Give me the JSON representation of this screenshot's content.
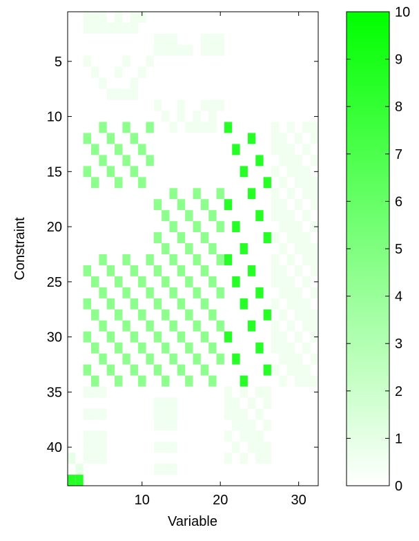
{
  "chart_data": {
    "type": "heatmap",
    "title": "",
    "xlabel": "Variable",
    "ylabel": "Constraint",
    "xlim": [
      0.5,
      32.5
    ],
    "ylim": [
      0.5,
      43.5
    ],
    "y_reversed": true,
    "x_ticks": [
      10,
      20,
      30
    ],
    "y_ticks": [
      5,
      10,
      15,
      20,
      25,
      30,
      35,
      40
    ],
    "colorbar": {
      "min": 0,
      "max": 10,
      "ticks": [
        0,
        1,
        2,
        3,
        4,
        5,
        6,
        7,
        8,
        9,
        10
      ],
      "color_low": "#ffffff",
      "color_high": "#00ff00"
    },
    "cells": [
      [
        1,
        3,
        0.6
      ],
      [
        1,
        4,
        0.6
      ],
      [
        1,
        5,
        0.6
      ],
      [
        2,
        3,
        0.6
      ],
      [
        2,
        4,
        0.6
      ],
      [
        2,
        5,
        0.6
      ],
      [
        1,
        7,
        0.6
      ],
      [
        1,
        9,
        0.6
      ],
      [
        1,
        10,
        0.6
      ],
      [
        2,
        6,
        0.6
      ],
      [
        2,
        7,
        0.6
      ],
      [
        2,
        8,
        0.6
      ],
      [
        2,
        9,
        0.6
      ],
      [
        3,
        12,
        0.6
      ],
      [
        3,
        13,
        0.6
      ],
      [
        3,
        14,
        0.6
      ],
      [
        3,
        18,
        0.6
      ],
      [
        3,
        19,
        0.6
      ],
      [
        3,
        20,
        0.6
      ],
      [
        4,
        12,
        0.6
      ],
      [
        4,
        13,
        0.6
      ],
      [
        4,
        14,
        0.6
      ],
      [
        4,
        15,
        0.6
      ],
      [
        4,
        16,
        0.6
      ],
      [
        4,
        18,
        0.6
      ],
      [
        4,
        19,
        0.6
      ],
      [
        4,
        20,
        0.6
      ],
      [
        5,
        3,
        0.6
      ],
      [
        5,
        8,
        0.6
      ],
      [
        5,
        11,
        0.6
      ],
      [
        6,
        4,
        0.6
      ],
      [
        6,
        7,
        0.6
      ],
      [
        6,
        10,
        0.6
      ],
      [
        7,
        5,
        0.6
      ],
      [
        7,
        9,
        0.6
      ],
      [
        8,
        6,
        0.6
      ],
      [
        8,
        7,
        0.6
      ],
      [
        8,
        8,
        0.6
      ],
      [
        8,
        9,
        0.6
      ],
      [
        9,
        12,
        0.6
      ],
      [
        9,
        15,
        0.6
      ],
      [
        9,
        18,
        0.6
      ],
      [
        9,
        19,
        0.6
      ],
      [
        9,
        20,
        0.6
      ],
      [
        10,
        13,
        0.6
      ],
      [
        10,
        15,
        0.6
      ],
      [
        10,
        17,
        0.6
      ],
      [
        10,
        19,
        0.6
      ],
      [
        11,
        14,
        0.6
      ],
      [
        11,
        16,
        0.6
      ],
      [
        11,
        17,
        0.6
      ],
      [
        11,
        18,
        0.6
      ],
      [
        11,
        19,
        0.6
      ],
      [
        11,
        21,
        8.5
      ],
      [
        12,
        24,
        8.5
      ],
      [
        13,
        22,
        8.5
      ],
      [
        14,
        25,
        8.5
      ],
      [
        15,
        23,
        8.5
      ],
      [
        16,
        26,
        8.5
      ],
      [
        17,
        24,
        8.5
      ],
      [
        18,
        21,
        8.5
      ],
      [
        19,
        25,
        8.5
      ],
      [
        20,
        22,
        8.5
      ],
      [
        21,
        26,
        8.5
      ],
      [
        22,
        23,
        8.5
      ],
      [
        23,
        21,
        8.5
      ],
      [
        24,
        24,
        8.5
      ],
      [
        25,
        22,
        8.5
      ],
      [
        26,
        25,
        8.5
      ],
      [
        27,
        23,
        8.5
      ],
      [
        28,
        26,
        8.5
      ],
      [
        29,
        24,
        8.5
      ],
      [
        30,
        21,
        8.5
      ],
      [
        31,
        25,
        8.5
      ],
      [
        32,
        22,
        8.5
      ],
      [
        33,
        26,
        8.5
      ],
      [
        34,
        23,
        8.5
      ],
      [
        35,
        3,
        0.6
      ],
      [
        35,
        4,
        0.6
      ],
      [
        35,
        5,
        0.6
      ],
      [
        37,
        3,
        0.6
      ],
      [
        37,
        4,
        0.6
      ],
      [
        37,
        5,
        0.6
      ],
      [
        39,
        3,
        0.6
      ],
      [
        40,
        3,
        0.6
      ],
      [
        41,
        3,
        0.6
      ],
      [
        39,
        4,
        0.6
      ],
      [
        40,
        4,
        0.6
      ],
      [
        41,
        4,
        0.6
      ],
      [
        39,
        5,
        0.6
      ],
      [
        40,
        5,
        0.6
      ],
      [
        41,
        5,
        0.6
      ],
      [
        36,
        12,
        0.6
      ],
      [
        37,
        12,
        0.6
      ],
      [
        38,
        12,
        0.6
      ],
      [
        36,
        13,
        0.6
      ],
      [
        37,
        13,
        0.6
      ],
      [
        38,
        13,
        0.6
      ],
      [
        36,
        14,
        0.6
      ],
      [
        37,
        14,
        0.6
      ],
      [
        38,
        14,
        0.6
      ],
      [
        40,
        12,
        0.6
      ],
      [
        40,
        13,
        0.6
      ],
      [
        40,
        14,
        0.6
      ],
      [
        42,
        12,
        0.6
      ],
      [
        42,
        13,
        0.6
      ],
      [
        42,
        14,
        0.6
      ],
      [
        41,
        1,
        1.0
      ],
      [
        42,
        2,
        1.0
      ],
      [
        43,
        1,
        8.5
      ],
      [
        43,
        2,
        8.5
      ]
    ],
    "blocks": [
      {
        "rows": [
          11,
          16
        ],
        "cols": [
          3,
          11
        ],
        "value": 4.5
      },
      {
        "rows": [
          17,
          22
        ],
        "cols": [
          12,
          20
        ],
        "value": 4.5
      },
      {
        "rows": [
          23,
          28
        ],
        "cols": [
          3,
          20
        ],
        "value": 4.5
      },
      {
        "rows": [
          29,
          34
        ],
        "cols": [
          3,
          20
        ],
        "value": 4.5
      },
      {
        "rows": [
          35,
          41
        ],
        "cols": [
          21,
          26
        ],
        "value": 0.6
      },
      {
        "rows": [
          11,
          34
        ],
        "cols": [
          27,
          32
        ],
        "value": 0.6
      }
    ]
  }
}
